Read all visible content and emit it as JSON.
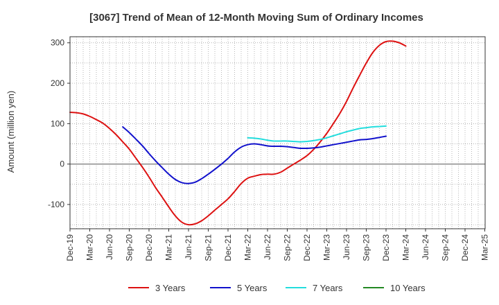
{
  "chart_data": {
    "type": "line",
    "title": "[3067]  Trend of Mean of 12-Month Moving Sum of Ordinary Incomes",
    "xlabel": "",
    "ylabel": "Amount (million yen)",
    "ylim": [
      -160,
      315
    ],
    "yticks": [
      -100,
      0,
      100,
      200,
      300
    ],
    "ytick_labels": [
      "-100",
      "0",
      "100",
      "200",
      "300"
    ],
    "categories": [
      "Dec-19",
      "Mar-20",
      "Jun-20",
      "Sep-20",
      "Dec-20",
      "Mar-21",
      "Jun-21",
      "Sep-21",
      "Dec-21",
      "Mar-22",
      "Jun-22",
      "Sep-22",
      "Dec-22",
      "Mar-23",
      "Jun-23",
      "Sep-23",
      "Dec-23",
      "Mar-24",
      "Jun-24",
      "Sep-24",
      "Dec-24",
      "Mar-25"
    ],
    "grid": true,
    "legend_position": "bottom",
    "series": [
      {
        "name": "3 Years",
        "color": "#dd1111",
        "points": [
          [
            0,
            128
          ],
          [
            0.33,
            127
          ],
          [
            0.67,
            124
          ],
          [
            1,
            118
          ],
          [
            1.33,
            110
          ],
          [
            1.67,
            101
          ],
          [
            2,
            88
          ],
          [
            2.33,
            73
          ],
          [
            2.67,
            55
          ],
          [
            3,
            37
          ],
          [
            3.33,
            15
          ],
          [
            3.67,
            -8
          ],
          [
            4,
            -32
          ],
          [
            4.33,
            -58
          ],
          [
            4.67,
            -82
          ],
          [
            5,
            -106
          ],
          [
            5.33,
            -128
          ],
          [
            5.67,
            -144
          ],
          [
            6,
            -150
          ],
          [
            6.33,
            -148
          ],
          [
            6.67,
            -140
          ],
          [
            7,
            -128
          ],
          [
            7.33,
            -114
          ],
          [
            7.67,
            -100
          ],
          [
            8,
            -86
          ],
          [
            8.33,
            -68
          ],
          [
            8.67,
            -48
          ],
          [
            9,
            -35
          ],
          [
            9.33,
            -30
          ],
          [
            9.67,
            -26
          ],
          [
            10,
            -25
          ],
          [
            10.33,
            -25
          ],
          [
            10.67,
            -20
          ],
          [
            11,
            -10
          ],
          [
            11.33,
            0
          ],
          [
            11.67,
            10
          ],
          [
            12,
            21
          ],
          [
            12.33,
            36
          ],
          [
            12.67,
            55
          ],
          [
            13,
            76
          ],
          [
            13.33,
            100
          ],
          [
            13.67,
            126
          ],
          [
            14,
            155
          ],
          [
            14.33,
            188
          ],
          [
            14.67,
            220
          ],
          [
            15,
            250
          ],
          [
            15.33,
            276
          ],
          [
            15.67,
            294
          ],
          [
            16,
            303
          ],
          [
            16.33,
            304
          ],
          [
            16.67,
            300
          ],
          [
            17,
            292
          ]
        ]
      },
      {
        "name": "5 Years",
        "color": "#1111cc",
        "points": [
          [
            2.67,
            92
          ],
          [
            3,
            78
          ],
          [
            3.33,
            62
          ],
          [
            3.67,
            45
          ],
          [
            4,
            26
          ],
          [
            4.33,
            8
          ],
          [
            4.67,
            -9
          ],
          [
            5,
            -25
          ],
          [
            5.33,
            -38
          ],
          [
            5.67,
            -46
          ],
          [
            6,
            -48
          ],
          [
            6.33,
            -45
          ],
          [
            6.67,
            -36
          ],
          [
            7,
            -25
          ],
          [
            7.33,
            -13
          ],
          [
            7.67,
            0
          ],
          [
            8,
            14
          ],
          [
            8.33,
            30
          ],
          [
            8.67,
            42
          ],
          [
            9,
            48
          ],
          [
            9.33,
            50
          ],
          [
            9.67,
            48
          ],
          [
            10,
            45
          ],
          [
            10.33,
            44
          ],
          [
            10.67,
            44
          ],
          [
            11,
            43
          ],
          [
            11.33,
            41
          ],
          [
            11.67,
            39
          ],
          [
            12,
            39
          ],
          [
            12.33,
            40
          ],
          [
            12.67,
            42
          ],
          [
            13,
            45
          ],
          [
            13.33,
            48
          ],
          [
            13.67,
            51
          ],
          [
            14,
            54
          ],
          [
            14.33,
            57
          ],
          [
            14.67,
            60
          ],
          [
            15,
            61
          ],
          [
            15.33,
            63
          ],
          [
            15.67,
            66
          ],
          [
            16,
            69
          ]
        ]
      },
      {
        "name": "7 Years",
        "color": "#22dddd",
        "points": [
          [
            9,
            65
          ],
          [
            9.33,
            64
          ],
          [
            9.67,
            62
          ],
          [
            10,
            59
          ],
          [
            10.33,
            57
          ],
          [
            10.67,
            57
          ],
          [
            11,
            57
          ],
          [
            11.33,
            56
          ],
          [
            11.67,
            55
          ],
          [
            12,
            56
          ],
          [
            12.33,
            58
          ],
          [
            12.67,
            61
          ],
          [
            13,
            65
          ],
          [
            13.33,
            70
          ],
          [
            13.67,
            75
          ],
          [
            14,
            80
          ],
          [
            14.33,
            84
          ],
          [
            14.67,
            88
          ],
          [
            15,
            90
          ],
          [
            15.33,
            92
          ],
          [
            15.67,
            93
          ],
          [
            16,
            94
          ]
        ]
      },
      {
        "name": "10 Years",
        "color": "#228822",
        "points": []
      }
    ]
  }
}
